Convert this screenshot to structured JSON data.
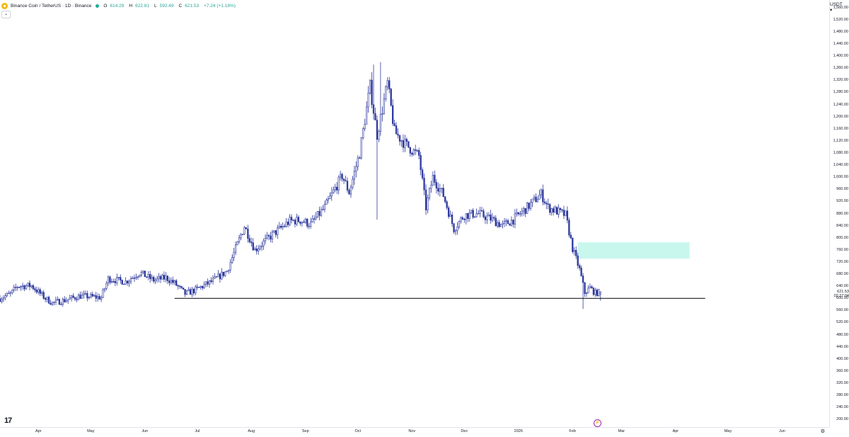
{
  "legend": {
    "symbol": "Binance Coin / TetherUS · 1D · Binance",
    "open_key": "O",
    "open": "614.29",
    "high_key": "H",
    "high": "622.81",
    "low_key": "L",
    "low": "592.49",
    "close_key": "C",
    "close": "621.53",
    "change": "+7.24 (+1.18%)",
    "collapse_icon": "chevron-down"
  },
  "currency": "USDT",
  "last_price": {
    "value": "621.53",
    "countdown": "02:27:04"
  },
  "colors": {
    "candle": "#2f3a9e",
    "zone": "#c8f7ee",
    "axis_text": "#131722",
    "support_line": "#000000"
  },
  "chart_data": {
    "type": "candlestick",
    "title": "Binance Coin / TetherUS · 1D · Binance",
    "y_ticks": [
      200,
      240,
      280,
      320,
      360,
      400,
      440,
      480,
      520,
      560,
      600,
      640,
      680,
      720,
      760,
      800,
      840,
      880,
      920,
      960,
      1000,
      1040,
      1080,
      1120,
      1160,
      1200,
      1240,
      1280,
      1320,
      1360,
      1400,
      1440,
      1480,
      1520,
      1560
    ],
    "y_tick_labels": [
      "200.00",
      "240.00",
      "280.00",
      "320.00",
      "360.00",
      "400.00",
      "440.00",
      "480.00",
      "520.00",
      "560.00",
      "600.00",
      "640.00",
      "680.00",
      "720.00",
      "760.00",
      "800.00",
      "840.00",
      "880.00",
      "920.00",
      "960.00",
      "1,000.00",
      "1,040.00",
      "1,080.00",
      "1,120.00",
      "1,160.00",
      "1,200.00",
      "1,240.00",
      "1,280.00",
      "1,320.00",
      "1,360.00",
      "1,400.00",
      "1,440.00",
      "1,480.00",
      "1,520.00",
      "1,560.00"
    ],
    "ylim": [
      175,
      1585
    ],
    "x_labels": [
      "Apr",
      "May",
      "Jun",
      "Jul",
      "Aug",
      "Sep",
      "Oct",
      "Nov",
      "Dec",
      "2026",
      "Feb",
      "Mar",
      "Apr",
      "May",
      "Jun"
    ],
    "x_label_days": [
      22,
      52,
      83,
      113,
      144,
      175,
      205,
      236,
      266,
      297,
      328,
      356,
      387,
      417,
      448
    ],
    "xlim": [
      0,
      475
    ],
    "keypoints": [
      {
        "day": 0,
        "price": 600
      },
      {
        "day": 6,
        "price": 615
      },
      {
        "day": 10,
        "price": 640
      },
      {
        "day": 18,
        "price": 642
      },
      {
        "day": 26,
        "price": 600
      },
      {
        "day": 30,
        "price": 585
      },
      {
        "day": 36,
        "price": 592
      },
      {
        "day": 46,
        "price": 608
      },
      {
        "day": 58,
        "price": 603
      },
      {
        "day": 62,
        "price": 665
      },
      {
        "day": 72,
        "price": 655
      },
      {
        "day": 80,
        "price": 685
      },
      {
        "day": 88,
        "price": 660
      },
      {
        "day": 95,
        "price": 668
      },
      {
        "day": 100,
        "price": 650
      },
      {
        "day": 106,
        "price": 615
      },
      {
        "day": 112,
        "price": 628
      },
      {
        "day": 122,
        "price": 658
      },
      {
        "day": 130,
        "price": 690
      },
      {
        "day": 140,
        "price": 838
      },
      {
        "day": 146,
        "price": 760
      },
      {
        "day": 156,
        "price": 810
      },
      {
        "day": 166,
        "price": 855
      },
      {
        "day": 172,
        "price": 858
      },
      {
        "day": 178,
        "price": 845
      },
      {
        "day": 186,
        "price": 900
      },
      {
        "day": 196,
        "price": 1005
      },
      {
        "day": 200,
        "price": 950
      },
      {
        "day": 206,
        "price": 1080
      },
      {
        "day": 212,
        "price": 1300
      },
      {
        "day": 216,
        "price": 1140
      },
      {
        "day": 222,
        "price": 1310
      },
      {
        "day": 226,
        "price": 1150
      },
      {
        "day": 232,
        "price": 1110
      },
      {
        "day": 240,
        "price": 1070
      },
      {
        "day": 244,
        "price": 900
      },
      {
        "day": 248,
        "price": 1000
      },
      {
        "day": 254,
        "price": 940
      },
      {
        "day": 260,
        "price": 830
      },
      {
        "day": 266,
        "price": 875
      },
      {
        "day": 274,
        "price": 880
      },
      {
        "day": 282,
        "price": 860
      },
      {
        "day": 288,
        "price": 840
      },
      {
        "day": 294,
        "price": 860
      },
      {
        "day": 302,
        "price": 900
      },
      {
        "day": 310,
        "price": 945
      },
      {
        "day": 314,
        "price": 900
      },
      {
        "day": 320,
        "price": 885
      },
      {
        "day": 324,
        "price": 875
      },
      {
        "day": 328,
        "price": 765
      },
      {
        "day": 332,
        "price": 695
      },
      {
        "day": 335,
        "price": 618
      },
      {
        "day": 338,
        "price": 635
      },
      {
        "day": 341,
        "price": 617
      },
      {
        "day": 344,
        "price": 621.53
      }
    ],
    "spikes": [
      {
        "day": 214,
        "high": 1372,
        "low": 1290
      },
      {
        "day": 218,
        "high": 1380,
        "low": 1220
      },
      {
        "day": 216,
        "high": 1200,
        "low": 860
      },
      {
        "day": 334,
        "high": 640,
        "low": 565
      }
    ],
    "support_line": {
      "price": 600,
      "from_day": 100,
      "to_day": 404
    },
    "zone": {
      "from_day": 331,
      "to_day": 395,
      "low": 731,
      "high": 785
    },
    "last": {
      "open": 614.29,
      "high": 622.81,
      "low": 592.49,
      "close": 621.53
    }
  }
}
